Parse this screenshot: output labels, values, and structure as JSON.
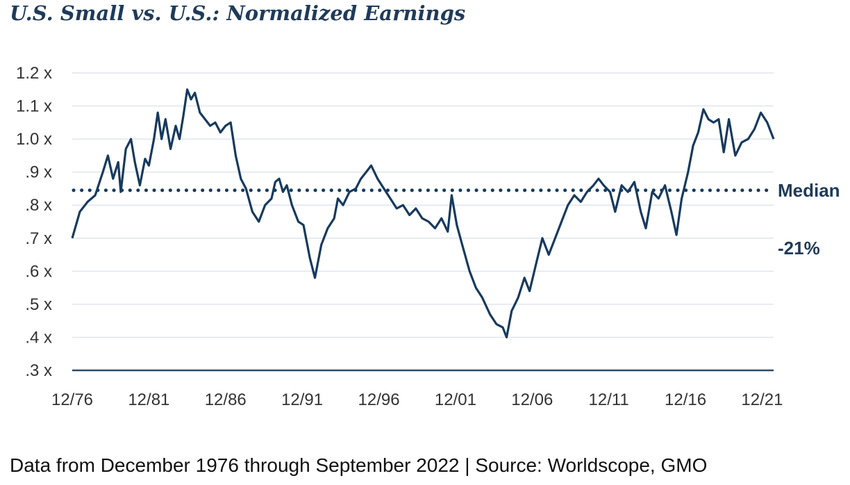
{
  "chart_data": {
    "type": "line",
    "title": "U.S. Small vs. U.S.: Normalized Earnings",
    "xlabel": "",
    "ylabel": "",
    "x_tick_labels": [
      "12/76",
      "12/81",
      "12/86",
      "12/91",
      "12/96",
      "12/01",
      "12/06",
      "12/11",
      "12/16",
      "12/21"
    ],
    "y_tick_labels": [
      ".3 x",
      ".4 x",
      ".5 x",
      ".6 x",
      ".7 x",
      ".8 x",
      ".9 x",
      "1.0 x",
      "1.1 x",
      "1.2 x"
    ],
    "ylim": [
      0.3,
      1.2
    ],
    "xlim": [
      "1976-12",
      "2022-09"
    ],
    "grid": true,
    "series": [
      {
        "values": [
          {
            "x": "1976-12",
            "y": 0.7
          },
          {
            "x": "1977-06",
            "y": 0.78
          },
          {
            "x": "1977-12",
            "y": 0.81
          },
          {
            "x": "1978-06",
            "y": 0.83
          },
          {
            "x": "1978-12",
            "y": 0.9
          },
          {
            "x": "1979-04",
            "y": 0.95
          },
          {
            "x": "1979-08",
            "y": 0.88
          },
          {
            "x": "1979-12",
            "y": 0.93
          },
          {
            "x": "1980-02",
            "y": 0.84
          },
          {
            "x": "1980-06",
            "y": 0.97
          },
          {
            "x": "1980-10",
            "y": 1.0
          },
          {
            "x": "1981-01",
            "y": 0.93
          },
          {
            "x": "1981-05",
            "y": 0.86
          },
          {
            "x": "1981-09",
            "y": 0.94
          },
          {
            "x": "1981-12",
            "y": 0.92
          },
          {
            "x": "1982-04",
            "y": 1.0
          },
          {
            "x": "1982-07",
            "y": 1.08
          },
          {
            "x": "1982-10",
            "y": 1.0
          },
          {
            "x": "1983-01",
            "y": 1.06
          },
          {
            "x": "1983-05",
            "y": 0.97
          },
          {
            "x": "1983-09",
            "y": 1.04
          },
          {
            "x": "1983-12",
            "y": 1.0
          },
          {
            "x": "1984-03",
            "y": 1.07
          },
          {
            "x": "1984-06",
            "y": 1.15
          },
          {
            "x": "1984-09",
            "y": 1.12
          },
          {
            "x": "1984-12",
            "y": 1.14
          },
          {
            "x": "1985-04",
            "y": 1.08
          },
          {
            "x": "1985-08",
            "y": 1.06
          },
          {
            "x": "1985-12",
            "y": 1.04
          },
          {
            "x": "1986-04",
            "y": 1.05
          },
          {
            "x": "1986-08",
            "y": 1.02
          },
          {
            "x": "1986-12",
            "y": 1.04
          },
          {
            "x": "1987-04",
            "y": 1.05
          },
          {
            "x": "1987-08",
            "y": 0.95
          },
          {
            "x": "1987-12",
            "y": 0.88
          },
          {
            "x": "1988-04",
            "y": 0.85
          },
          {
            "x": "1988-09",
            "y": 0.78
          },
          {
            "x": "1989-02",
            "y": 0.75
          },
          {
            "x": "1989-07",
            "y": 0.8
          },
          {
            "x": "1989-12",
            "y": 0.82
          },
          {
            "x": "1990-03",
            "y": 0.87
          },
          {
            "x": "1990-06",
            "y": 0.88
          },
          {
            "x": "1990-09",
            "y": 0.84
          },
          {
            "x": "1990-12",
            "y": 0.86
          },
          {
            "x": "1991-04",
            "y": 0.8
          },
          {
            "x": "1991-09",
            "y": 0.75
          },
          {
            "x": "1992-01",
            "y": 0.74
          },
          {
            "x": "1992-06",
            "y": 0.64
          },
          {
            "x": "1992-10",
            "y": 0.58
          },
          {
            "x": "1993-03",
            "y": 0.68
          },
          {
            "x": "1993-08",
            "y": 0.73
          },
          {
            "x": "1994-01",
            "y": 0.76
          },
          {
            "x": "1994-04",
            "y": 0.82
          },
          {
            "x": "1994-08",
            "y": 0.8
          },
          {
            "x": "1995-01",
            "y": 0.84
          },
          {
            "x": "1995-06",
            "y": 0.85
          },
          {
            "x": "1995-10",
            "y": 0.88
          },
          {
            "x": "1996-02",
            "y": 0.9
          },
          {
            "x": "1996-06",
            "y": 0.92
          },
          {
            "x": "1996-11",
            "y": 0.88
          },
          {
            "x": "1997-04",
            "y": 0.85
          },
          {
            "x": "1997-09",
            "y": 0.82
          },
          {
            "x": "1998-02",
            "y": 0.79
          },
          {
            "x": "1998-07",
            "y": 0.8
          },
          {
            "x": "1998-12",
            "y": 0.77
          },
          {
            "x": "1999-05",
            "y": 0.79
          },
          {
            "x": "1999-10",
            "y": 0.76
          },
          {
            "x": "2000-03",
            "y": 0.75
          },
          {
            "x": "2000-08",
            "y": 0.73
          },
          {
            "x": "2001-01",
            "y": 0.76
          },
          {
            "x": "2001-06",
            "y": 0.72
          },
          {
            "x": "2001-09",
            "y": 0.83
          },
          {
            "x": "2002-01",
            "y": 0.74
          },
          {
            "x": "2002-06",
            "y": 0.67
          },
          {
            "x": "2002-11",
            "y": 0.6
          },
          {
            "x": "2003-04",
            "y": 0.55
          },
          {
            "x": "2003-09",
            "y": 0.52
          },
          {
            "x": "2004-03",
            "y": 0.47
          },
          {
            "x": "2004-08",
            "y": 0.44
          },
          {
            "x": "2005-01",
            "y": 0.43
          },
          {
            "x": "2005-04",
            "y": 0.4
          },
          {
            "x": "2005-08",
            "y": 0.48
          },
          {
            "x": "2006-01",
            "y": 0.52
          },
          {
            "x": "2006-06",
            "y": 0.58
          },
          {
            "x": "2006-10",
            "y": 0.54
          },
          {
            "x": "2007-03",
            "y": 0.62
          },
          {
            "x": "2007-08",
            "y": 0.7
          },
          {
            "x": "2008-01",
            "y": 0.65
          },
          {
            "x": "2008-06",
            "y": 0.7
          },
          {
            "x": "2008-11",
            "y": 0.75
          },
          {
            "x": "2009-04",
            "y": 0.8
          },
          {
            "x": "2009-09",
            "y": 0.83
          },
          {
            "x": "2010-02",
            "y": 0.81
          },
          {
            "x": "2010-07",
            "y": 0.84
          },
          {
            "x": "2010-12",
            "y": 0.86
          },
          {
            "x": "2011-04",
            "y": 0.88
          },
          {
            "x": "2011-08",
            "y": 0.86
          },
          {
            "x": "2012-01",
            "y": 0.84
          },
          {
            "x": "2012-05",
            "y": 0.78
          },
          {
            "x": "2012-10",
            "y": 0.86
          },
          {
            "x": "2013-03",
            "y": 0.84
          },
          {
            "x": "2013-08",
            "y": 0.87
          },
          {
            "x": "2014-01",
            "y": 0.78
          },
          {
            "x": "2014-05",
            "y": 0.73
          },
          {
            "x": "2014-10",
            "y": 0.84
          },
          {
            "x": "2015-03",
            "y": 0.82
          },
          {
            "x": "2015-08",
            "y": 0.86
          },
          {
            "x": "2016-01",
            "y": 0.78
          },
          {
            "x": "2016-05",
            "y": 0.71
          },
          {
            "x": "2016-09",
            "y": 0.82
          },
          {
            "x": "2017-02",
            "y": 0.9
          },
          {
            "x": "2017-06",
            "y": 0.98
          },
          {
            "x": "2017-10",
            "y": 1.02
          },
          {
            "x": "2018-02",
            "y": 1.09
          },
          {
            "x": "2018-06",
            "y": 1.06
          },
          {
            "x": "2018-10",
            "y": 1.05
          },
          {
            "x": "2019-02",
            "y": 1.06
          },
          {
            "x": "2019-06",
            "y": 0.96
          },
          {
            "x": "2019-10",
            "y": 1.06
          },
          {
            "x": "2020-03",
            "y": 0.95
          },
          {
            "x": "2020-08",
            "y": 0.99
          },
          {
            "x": "2021-01",
            "y": 1.0
          },
          {
            "x": "2021-06",
            "y": 1.03
          },
          {
            "x": "2021-11",
            "y": 1.08
          },
          {
            "x": "2022-04",
            "y": 1.05
          },
          {
            "x": "2022-09",
            "y": 1.0
          }
        ]
      }
    ],
    "median": {
      "label": "Median",
      "value": 0.845
    },
    "annotations": [
      {
        "text": "-21%"
      }
    ]
  },
  "caption": "Data from December 1976 through September 2022 | Source: Worldscope, GMO",
  "colors": {
    "line": "#173a5e",
    "grid": "#dfe6ee",
    "axis": "#2a4a68",
    "title": "#1f3b5a"
  }
}
